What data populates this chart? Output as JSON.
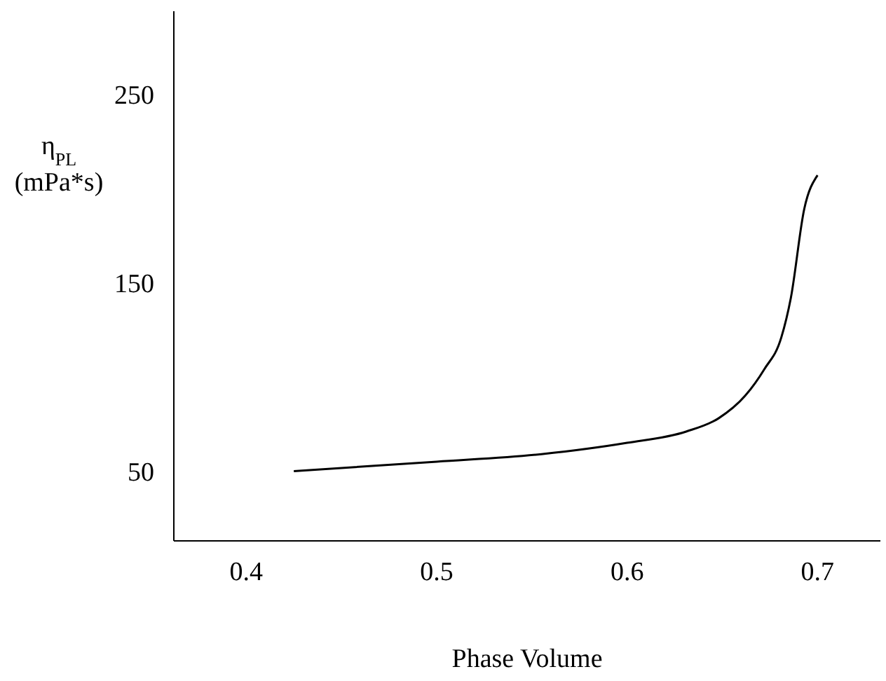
{
  "chart_data": {
    "type": "line",
    "xlabel": "Phase Volume",
    "ylabel": "η$_{PL}$ (mPa*s)",
    "x": [
      0.425,
      0.5,
      0.555,
      0.6,
      0.631,
      0.648,
      0.662,
      0.672,
      0.681,
      0.686,
      0.693,
      0.7
    ],
    "series": [
      {
        "color": "#000000",
        "values": [
          50,
          55,
          59,
          65,
          71,
          78,
          90,
          104,
          121,
          142,
          189,
          207
        ]
      }
    ],
    "xlim": [
      0.362,
      0.733
    ],
    "xticks": [
      0.4,
      0.5,
      0.6,
      0.7
    ],
    "ylim": [
      13,
      294
    ],
    "yticks": [
      50,
      150,
      250
    ],
    "marker": "none",
    "line_style": "solid"
  }
}
